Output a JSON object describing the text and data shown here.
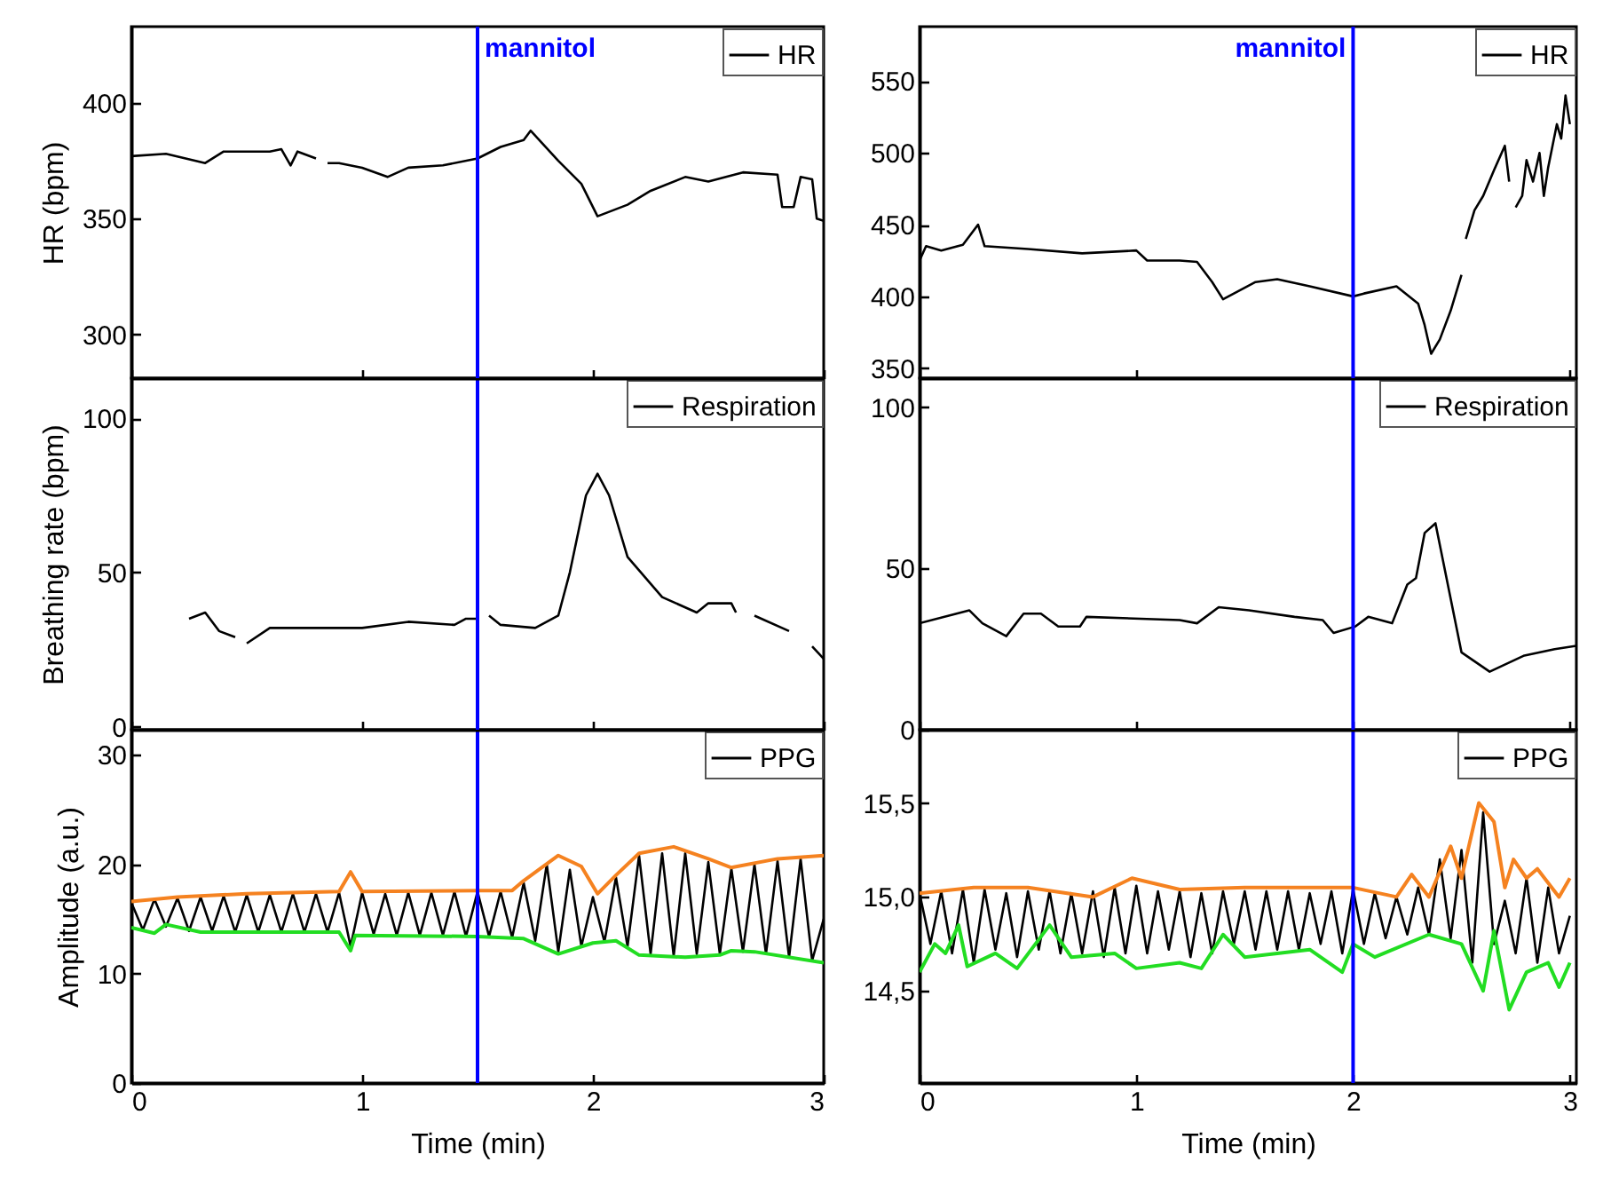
{
  "chart_data": [
    {
      "type": "line",
      "ylabel": "HR (bpm)",
      "xlim": [
        0,
        3
      ],
      "xticks": [
        0,
        1,
        2,
        3
      ],
      "ylim": [
        281,
        433
      ],
      "yticks": [
        300,
        350,
        400
      ],
      "tick_labels": "y",
      "legend": "top right",
      "ref_lines": [
        {
          "axis": "x",
          "value": 1.5,
          "label": "mannitol",
          "color": "#0000ff"
        }
      ],
      "series": [
        {
          "name": "HR",
          "color": "#000000",
          "x": [
            0,
            0.15,
            0.32,
            0.4,
            0.6,
            0.65,
            0.69,
            0.72,
            0.8,
            0.83,
            0.85,
            0.9,
            1.0,
            1.11,
            1.2,
            1.35,
            1.5,
            1.6,
            1.7,
            1.73,
            1.85,
            1.95,
            2.02,
            2.15,
            2.25,
            2.4,
            2.5,
            2.65,
            2.8,
            2.82,
            2.87,
            2.9,
            2.95,
            2.97,
            3.0
          ],
          "values": [
            377,
            378,
            374,
            379,
            379,
            380,
            373,
            379,
            376,
            null,
            374,
            374,
            372,
            368,
            372,
            373,
            376,
            381,
            384,
            388,
            375,
            365,
            351,
            356,
            362,
            368,
            366,
            370,
            369,
            355,
            355,
            368,
            367,
            350,
            349
          ]
        }
      ]
    },
    {
      "type": "line",
      "xlim": [
        0,
        3.03
      ],
      "xticks": [
        0,
        1,
        2,
        3
      ],
      "ylim": [
        343,
        588
      ],
      "yticks": [
        350,
        400,
        450,
        500,
        550
      ],
      "tick_labels": "y",
      "legend": "top right",
      "ref_lines": [
        {
          "axis": "x",
          "value": 2,
          "label": "mannitol",
          "color": "#0000ff"
        }
      ],
      "series": [
        {
          "name": "HR",
          "color": "#000000",
          "x": [
            0,
            0.03,
            0.1,
            0.2,
            0.27,
            0.3,
            0.5,
            0.75,
            1.0,
            1.05,
            1.2,
            1.28,
            1.35,
            1.4,
            1.55,
            1.65,
            1.8,
            2.0,
            2.05,
            2.2,
            2.3,
            2.33,
            2.36,
            2.4,
            2.45,
            2.5,
            2.51,
            2.52,
            2.56,
            2.6,
            2.65,
            2.7,
            2.72,
            2.73,
            2.75,
            2.78,
            2.8,
            2.83,
            2.86,
            2.88,
            2.9,
            2.92,
            2.94,
            2.96,
            2.98,
            3.0
          ],
          "values": [
            425,
            435,
            432,
            436,
            450,
            435,
            433,
            430,
            432,
            425,
            425,
            424,
            410,
            398,
            410,
            412,
            407,
            400,
            402,
            407,
            395,
            380,
            360,
            370,
            390,
            415,
            null,
            440,
            460,
            470,
            488,
            505,
            480,
            null,
            462,
            470,
            495,
            480,
            500,
            470,
            490,
            505,
            520,
            510,
            540,
            520
          ]
        }
      ]
    },
    {
      "type": "line",
      "ylabel": "Breathing rate (bpm)",
      "xlim": [
        0,
        3
      ],
      "xticks": [
        0,
        1,
        2,
        3
      ],
      "ylim": [
        -1,
        113
      ],
      "yticks": [
        0,
        50,
        100
      ],
      "tick_labels": "y",
      "legend": "top right",
      "ref_lines": [
        {
          "axis": "x",
          "value": 1.5,
          "color": "#0000ff"
        }
      ],
      "series": [
        {
          "name": "Respiration",
          "color": "#000000",
          "x": [
            0.25,
            0.32,
            0.38,
            0.45,
            0.47,
            0.5,
            0.6,
            0.8,
            1.0,
            1.2,
            1.4,
            1.45,
            1.5,
            1.52,
            1.55,
            1.6,
            1.75,
            1.85,
            1.9,
            1.97,
            2.02,
            2.07,
            2.15,
            2.3,
            2.45,
            2.5,
            2.6,
            2.62,
            2.66,
            2.7,
            2.85,
            2.9,
            2.95,
            3.0
          ],
          "values": [
            35,
            37,
            31,
            29,
            null,
            27,
            32,
            32,
            32,
            34,
            33,
            35,
            35,
            null,
            36,
            33,
            32,
            36,
            50,
            75,
            82,
            75,
            55,
            42,
            37,
            40,
            40,
            37,
            null,
            36,
            31,
            null,
            26,
            22
          ]
        }
      ]
    },
    {
      "type": "line",
      "xlim": [
        0,
        3.03
      ],
      "xticks": [
        0,
        1,
        2,
        3
      ],
      "ylim": [
        0,
        109
      ],
      "yticks": [
        0,
        50,
        100
      ],
      "tick_labels": "y",
      "legend": "top right",
      "ref_lines": [
        {
          "axis": "x",
          "value": 2,
          "color": "#0000ff"
        }
      ],
      "series": [
        {
          "name": "Respiration",
          "color": "#000000",
          "x": [
            0,
            0.23,
            0.29,
            0.4,
            0.48,
            0.56,
            0.64,
            0.74,
            0.77,
            1.2,
            1.28,
            1.38,
            1.52,
            1.73,
            1.86,
            1.91,
            2.01,
            2.07,
            2.18,
            2.25,
            2.29,
            2.33,
            2.38,
            2.5,
            2.63,
            2.79,
            2.93,
            3.03
          ],
          "values": [
            33,
            37,
            33,
            29,
            36,
            36,
            32,
            32,
            35,
            34,
            33,
            38,
            37,
            35,
            34,
            30,
            32,
            35,
            33,
            45,
            47,
            61,
            64,
            24,
            18,
            23,
            25,
            26
          ]
        }
      ]
    },
    {
      "type": "line",
      "ylabel": "Amplitude (a.u.)",
      "xlabel": "Time (min)",
      "xlim": [
        0,
        3
      ],
      "xticks": [
        0,
        1,
        2,
        3
      ],
      "ylim": [
        0,
        32.3
      ],
      "yticks": [
        0,
        10,
        20,
        30
      ],
      "legend": "top right",
      "ref_lines": [
        {
          "axis": "x",
          "value": 1.5,
          "color": "#0000ff"
        }
      ],
      "series": [
        {
          "name": "PPG",
          "color": "#000000",
          "x": [
            0,
            0.05,
            0.1,
            0.15,
            0.2,
            0.25,
            0.3,
            0.35,
            0.4,
            0.45,
            0.5,
            0.55,
            0.6,
            0.65,
            0.7,
            0.75,
            0.8,
            0.85,
            0.9,
            0.95,
            1.0,
            1.05,
            1.1,
            1.15,
            1.2,
            1.25,
            1.3,
            1.35,
            1.4,
            1.45,
            1.5,
            1.55,
            1.6,
            1.65,
            1.7,
            1.75,
            1.8,
            1.85,
            1.9,
            1.95,
            2.0,
            2.05,
            2.1,
            2.15,
            2.2,
            2.25,
            2.3,
            2.35,
            2.4,
            2.45,
            2.5,
            2.55,
            2.6,
            2.65,
            2.7,
            2.75,
            2.8,
            2.85,
            2.9,
            2.95,
            3.0
          ],
          "values": [
            16.5,
            14,
            16.8,
            14.3,
            16.9,
            13.9,
            17,
            13.9,
            17.1,
            13.8,
            17.2,
            13.8,
            17.2,
            13.8,
            17.3,
            13.8,
            17.3,
            13.8,
            17.4,
            12.5,
            17.4,
            13.6,
            17.3,
            13.5,
            17.4,
            13.5,
            17.4,
            13.5,
            17.5,
            13.4,
            17.5,
            13.4,
            17.5,
            13.3,
            18.3,
            13,
            20,
            12,
            19.5,
            12.5,
            17,
            12.9,
            18.8,
            12.5,
            20.8,
            11.8,
            21,
            11.6,
            21,
            11.8,
            20.2,
            11.8,
            19.6,
            12,
            20,
            11.8,
            20.3,
            11.5,
            20.5,
            11.2,
            15
          ]
        },
        {
          "color": "#f58220",
          "x": [
            0,
            0.2,
            0.5,
            0.9,
            0.95,
            1.0,
            1.5,
            1.65,
            1.7,
            1.85,
            1.95,
            2.02,
            2.1,
            2.2,
            2.35,
            2.5,
            2.6,
            2.8,
            3.0
          ],
          "values": [
            16.6,
            17,
            17.3,
            17.5,
            19.3,
            17.5,
            17.6,
            17.6,
            18.5,
            20.8,
            19.8,
            17.3,
            19,
            21,
            21.6,
            20.5,
            19.7,
            20.5,
            20.8
          ]
        },
        {
          "color": "#22dd22",
          "x": [
            0,
            0.1,
            0.15,
            0.3,
            0.9,
            0.95,
            0.97,
            1.5,
            1.7,
            1.85,
            2.0,
            2.1,
            2.2,
            2.4,
            2.55,
            2.6,
            2.7,
            3.0
          ],
          "values": [
            14.2,
            13.7,
            14.5,
            13.8,
            13.8,
            12.1,
            13.5,
            13.4,
            13.2,
            11.8,
            12.8,
            13,
            11.7,
            11.5,
            11.7,
            12.1,
            12,
            11
          ]
        }
      ]
    },
    {
      "type": "line",
      "xlabel": "Time (min)",
      "xlim": [
        0,
        3.03
      ],
      "xticks": [
        0,
        1,
        2,
        3
      ],
      "ylim": [
        14.01,
        15.89
      ],
      "yticks": [
        {
          "value": 14.5,
          "label": "14,5"
        },
        {
          "value": 15,
          "label": "15,0"
        },
        {
          "value": 15.5,
          "label": "15,5"
        }
      ],
      "legend": "top right",
      "ref_lines": [
        {
          "axis": "x",
          "value": 2,
          "color": "#0000ff"
        }
      ],
      "series": [
        {
          "name": "PPG",
          "color": "#000000",
          "x": [
            0,
            0.05,
            0.1,
            0.15,
            0.2,
            0.25,
            0.3,
            0.35,
            0.4,
            0.45,
            0.5,
            0.55,
            0.6,
            0.65,
            0.7,
            0.75,
            0.8,
            0.85,
            0.9,
            0.95,
            1.0,
            1.05,
            1.1,
            1.15,
            1.2,
            1.25,
            1.3,
            1.35,
            1.4,
            1.45,
            1.5,
            1.55,
            1.6,
            1.65,
            1.7,
            1.75,
            1.8,
            1.85,
            1.9,
            1.95,
            2.0,
            2.05,
            2.1,
            2.15,
            2.2,
            2.25,
            2.3,
            2.35,
            2.4,
            2.45,
            2.5,
            2.55,
            2.6,
            2.65,
            2.7,
            2.75,
            2.8,
            2.85,
            2.9,
            2.95,
            3.0
          ],
          "values": [
            15.02,
            14.75,
            15.03,
            14.7,
            15.04,
            14.65,
            15.04,
            14.72,
            15.02,
            14.68,
            15.03,
            14.72,
            15.03,
            14.7,
            15.02,
            14.7,
            15.03,
            14.68,
            15.05,
            14.7,
            15.06,
            14.7,
            15.03,
            14.72,
            15.03,
            14.68,
            15.02,
            14.7,
            15.03,
            14.75,
            15.03,
            14.72,
            15.03,
            14.72,
            15.03,
            14.72,
            15.02,
            14.75,
            15.03,
            14.7,
            15.04,
            14.75,
            15.02,
            14.78,
            15.0,
            14.8,
            15.05,
            14.8,
            15.2,
            14.78,
            15.25,
            14.65,
            15.45,
            14.75,
            14.98,
            14.7,
            15.1,
            14.65,
            15.05,
            14.7,
            14.9
          ]
        },
        {
          "color": "#f58220",
          "x": [
            0,
            0.25,
            0.5,
            0.8,
            0.98,
            1.2,
            1.5,
            1.85,
            2.0,
            2.2,
            2.27,
            2.35,
            2.45,
            2.5,
            2.58,
            2.65,
            2.7,
            2.74,
            2.8,
            2.85,
            2.95,
            3.0
          ],
          "values": [
            15.02,
            15.05,
            15.05,
            15.0,
            15.1,
            15.04,
            15.05,
            15.05,
            15.05,
            15.0,
            15.12,
            15.0,
            15.27,
            15.1,
            15.5,
            15.4,
            15.05,
            15.2,
            15.1,
            15.15,
            15.0,
            15.1
          ]
        },
        {
          "color": "#22dd22",
          "x": [
            0,
            0.07,
            0.12,
            0.18,
            0.22,
            0.35,
            0.45,
            0.6,
            0.7,
            0.9,
            1.0,
            1.2,
            1.3,
            1.4,
            1.5,
            1.8,
            1.95,
            2.0,
            2.1,
            2.35,
            2.5,
            2.6,
            2.65,
            2.72,
            2.8,
            2.9,
            2.95,
            3.0
          ],
          "values": [
            14.6,
            14.75,
            14.7,
            14.85,
            14.63,
            14.7,
            14.62,
            14.85,
            14.68,
            14.7,
            14.62,
            14.65,
            14.62,
            14.8,
            14.68,
            14.72,
            14.6,
            14.75,
            14.68,
            14.8,
            14.75,
            14.5,
            14.82,
            14.4,
            14.6,
            14.65,
            14.52,
            14.65
          ]
        }
      ]
    }
  ]
}
